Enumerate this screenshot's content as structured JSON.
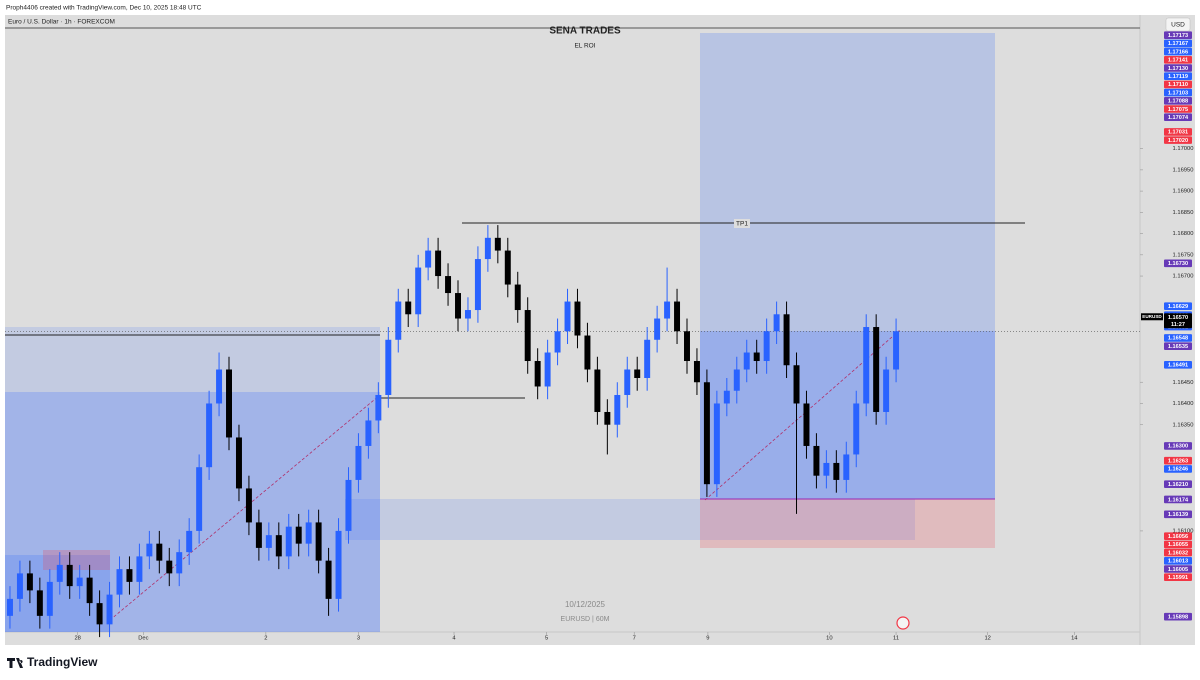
{
  "header": {
    "created": "Proph4406 created with TradingView.com, Dec 10, 2025 18:48 UTC"
  },
  "chart_data": {
    "type": "candlestick",
    "symbol_title": "Euro / U.S. Dollar · 1h · FOREXCOM",
    "title": "SENA TRADES",
    "subtitle": "EL ROI",
    "annotation": "TP1",
    "watermark": [
      "10/12/2025",
      "EURUSD | 60M"
    ],
    "currency": "USD",
    "ylim": [
      1.15862,
      1.17284
    ],
    "xlim": [
      -0.5,
      113.5
    ],
    "xticks": [
      {
        "value": 6.8,
        "label": "28"
      },
      {
        "value": 13.4,
        "label": "Dec"
      },
      {
        "value": 25.7,
        "label": "2"
      },
      {
        "value": 35.0,
        "label": "3"
      },
      {
        "value": 44.6,
        "label": "4"
      },
      {
        "value": 53.9,
        "label": "5"
      },
      {
        "value": 62.7,
        "label": "7"
      },
      {
        "value": 70.1,
        "label": "9"
      },
      {
        "value": 82.3,
        "label": "10"
      },
      {
        "value": 89.0,
        "label": "11"
      },
      {
        "value": 98.2,
        "label": "12"
      },
      {
        "value": 106.9,
        "label": "14"
      }
    ],
    "yticks": [
      {
        "value": 1.17,
        "label": "1.17000"
      },
      {
        "value": 1.1695,
        "label": "1.16950"
      },
      {
        "value": 1.169,
        "label": "1.16900"
      },
      {
        "value": 1.1685,
        "label": "1.16850"
      },
      {
        "value": 1.168,
        "label": "1.16800"
      },
      {
        "value": 1.1675,
        "label": "1.16750"
      },
      {
        "value": 1.167,
        "label": "1.16700"
      },
      {
        "value": 1.1645,
        "label": "1.16450"
      },
      {
        "value": 1.164,
        "label": "1.16400"
      },
      {
        "value": 1.1635,
        "label": "1.16350"
      },
      {
        "value": 1.161,
        "label": "1.16100"
      }
    ],
    "up_color": "#2962ff",
    "down_color": "#000000",
    "open": [
      1.159,
      1.1594,
      1.16,
      1.1596,
      1.159,
      1.1598,
      1.1602,
      1.1597,
      1.1599,
      1.1593,
      1.1588,
      1.1595,
      1.1601,
      1.1598,
      1.1604,
      1.1607,
      1.1603,
      1.16,
      1.1605,
      1.161,
      1.1625,
      1.164,
      1.1648,
      1.1632,
      1.162,
      1.1612,
      1.1606,
      1.1609,
      1.1604,
      1.1611,
      1.1607,
      1.1612,
      1.1603,
      1.1594,
      1.161,
      1.1622,
      1.163,
      1.1636,
      1.1642,
      1.1655,
      1.1664,
      1.1661,
      1.1672,
      1.1676,
      1.167,
      1.1666,
      1.166,
      1.1662,
      1.1674,
      1.1679,
      1.1676,
      1.1668,
      1.1662,
      1.165,
      1.1644,
      1.1652,
      1.1657,
      1.1664,
      1.1656,
      1.1648,
      1.1638,
      1.1635,
      1.1642,
      1.1648,
      1.1646,
      1.1655,
      1.166,
      1.1664,
      1.1657,
      1.165,
      1.1645,
      1.1621,
      1.164,
      1.1643,
      1.1648,
      1.1652,
      1.165,
      1.1657,
      1.1661,
      1.1649,
      1.164,
      1.163,
      1.1623,
      1.1626,
      1.1622,
      1.1628,
      1.164,
      1.1658,
      1.1638,
      1.1648
    ],
    "high": [
      1.1597,
      1.1603,
      1.1603,
      1.1599,
      1.1601,
      1.1605,
      1.1605,
      1.1602,
      1.1602,
      1.1596,
      1.1598,
      1.1604,
      1.1604,
      1.1607,
      1.161,
      1.161,
      1.1606,
      1.1608,
      1.1613,
      1.1628,
      1.1643,
      1.1652,
      1.1651,
      1.1635,
      1.1623,
      1.1615,
      1.1612,
      1.1612,
      1.1614,
      1.1614,
      1.1615,
      1.1615,
      1.1606,
      1.1613,
      1.1625,
      1.1633,
      1.1639,
      1.1645,
      1.1658,
      1.1667,
      1.1667,
      1.1675,
      1.1679,
      1.1679,
      1.1673,
      1.1669,
      1.1665,
      1.1677,
      1.1682,
      1.1682,
      1.1679,
      1.1671,
      1.1665,
      1.1653,
      1.1655,
      1.166,
      1.1667,
      1.1667,
      1.1659,
      1.1651,
      1.1641,
      1.1645,
      1.1651,
      1.1651,
      1.1658,
      1.1663,
      1.1672,
      1.1667,
      1.166,
      1.1653,
      1.1648,
      1.1643,
      1.1646,
      1.1651,
      1.1655,
      1.1655,
      1.166,
      1.1664,
      1.1664,
      1.1652,
      1.1643,
      1.1633,
      1.1629,
      1.1629,
      1.1631,
      1.1643,
      1.1661,
      1.1661,
      1.1651,
      1.166
    ],
    "low": [
      1.1587,
      1.1591,
      1.1593,
      1.1587,
      1.1587,
      1.1595,
      1.1594,
      1.1594,
      1.159,
      1.1585,
      1.1585,
      1.1592,
      1.1595,
      1.1595,
      1.1601,
      1.16,
      1.1597,
      1.1597,
      1.1602,
      1.1607,
      1.1622,
      1.1637,
      1.1629,
      1.1617,
      1.1609,
      1.1603,
      1.1603,
      1.1601,
      1.1601,
      1.1604,
      1.1604,
      1.16,
      1.159,
      1.1591,
      1.1607,
      1.1619,
      1.1627,
      1.1633,
      1.1639,
      1.1652,
      1.1658,
      1.1658,
      1.1669,
      1.1667,
      1.1663,
      1.1657,
      1.1657,
      1.1659,
      1.1671,
      1.1673,
      1.1665,
      1.1659,
      1.1647,
      1.1641,
      1.1641,
      1.1649,
      1.1654,
      1.1653,
      1.1645,
      1.1635,
      1.1628,
      1.1632,
      1.1639,
      1.1643,
      1.1643,
      1.1652,
      1.1657,
      1.1654,
      1.1647,
      1.1642,
      1.1618,
      1.1618,
      1.1637,
      1.164,
      1.1645,
      1.1647,
      1.1647,
      1.1654,
      1.1646,
      1.1614,
      1.1627,
      1.162,
      1.162,
      1.1619,
      1.1619,
      1.1625,
      1.1637,
      1.1635,
      1.1635,
      1.1645
    ],
    "close": [
      1.1594,
      1.16,
      1.1596,
      1.159,
      1.1598,
      1.1602,
      1.1597,
      1.1599,
      1.1593,
      1.1588,
      1.1595,
      1.1601,
      1.1598,
      1.1604,
      1.1607,
      1.1603,
      1.16,
      1.1605,
      1.161,
      1.1625,
      1.164,
      1.1648,
      1.1632,
      1.162,
      1.1612,
      1.1606,
      1.1609,
      1.1604,
      1.1611,
      1.1607,
      1.1612,
      1.1603,
      1.1594,
      1.161,
      1.1622,
      1.163,
      1.1636,
      1.1642,
      1.1655,
      1.1664,
      1.1661,
      1.1672,
      1.1676,
      1.167,
      1.1666,
      1.166,
      1.1662,
      1.1674,
      1.1679,
      1.1676,
      1.1668,
      1.1662,
      1.165,
      1.1644,
      1.1652,
      1.1657,
      1.1664,
      1.1656,
      1.1648,
      1.1638,
      1.1635,
      1.1642,
      1.1648,
      1.1646,
      1.1655,
      1.166,
      1.1664,
      1.1657,
      1.165,
      1.1645,
      1.1621,
      1.164,
      1.1643,
      1.1648,
      1.1652,
      1.165,
      1.1657,
      1.1661,
      1.1649,
      1.164,
      1.163,
      1.1623,
      1.1626,
      1.1622,
      1.1628,
      1.164,
      1.1658,
      1.1638,
      1.1648,
      1.1657
    ],
    "price_labels": [
      {
        "value": 1.17173,
        "label": "1.17173",
        "color": "#673ab7"
      },
      {
        "value": 1.17167,
        "label": "1.17167",
        "color": "#2962ff"
      },
      {
        "value": 1.17166,
        "label": "1.17166",
        "color": "#2962ff"
      },
      {
        "value": 1.17141,
        "label": "1.17141",
        "color": "#f23645"
      },
      {
        "value": 1.1713,
        "label": "1.17130",
        "color": "#673ab7"
      },
      {
        "value": 1.17119,
        "label": "1.17119",
        "color": "#2962ff"
      },
      {
        "value": 1.1711,
        "label": "1.17110",
        "color": "#f23645"
      },
      {
        "value": 1.17103,
        "label": "1.17103",
        "color": "#2962ff"
      },
      {
        "value": 1.17088,
        "label": "1.17088",
        "color": "#673ab7"
      },
      {
        "value": 1.17075,
        "label": "1.17075",
        "color": "#f23645"
      },
      {
        "value": 1.17074,
        "label": "1.17074",
        "color": "#673ab7"
      },
      {
        "value": 1.17031,
        "label": "1.17031",
        "color": "#f23645"
      },
      {
        "value": 1.1702,
        "label": "1.17020",
        "color": "#f23645"
      },
      {
        "value": 1.1673,
        "label": "1.16730",
        "color": "#673ab7"
      },
      {
        "value": 1.16629,
        "label": "1.16629",
        "color": "#2962ff"
      },
      {
        "value": 1.16608,
        "label": "1.16608",
        "color": "#2962ff"
      },
      {
        "value": 1.16581,
        "label": "1.16581",
        "color": "#2962ff"
      },
      {
        "value": 1.16548,
        "label": "1.16548",
        "color": "#2962ff"
      },
      {
        "value": 1.16535,
        "label": "1.16535",
        "color": "#673ab7"
      },
      {
        "value": 1.16491,
        "label": "1.16491",
        "color": "#2962ff"
      },
      {
        "value": 1.163,
        "label": "1.16300",
        "color": "#673ab7"
      },
      {
        "value": 1.16263,
        "label": "1.16263",
        "color": "#f23645"
      },
      {
        "value": 1.16246,
        "label": "1.16246",
        "color": "#2962ff"
      },
      {
        "value": 1.1621,
        "label": "1.16210",
        "color": "#673ab7"
      },
      {
        "value": 1.16174,
        "label": "1.16174",
        "color": "#673ab7"
      },
      {
        "value": 1.16139,
        "label": "1.16139",
        "color": "#673ab7"
      },
      {
        "value": 1.16056,
        "label": "1.16056",
        "color": "#f23645"
      },
      {
        "value": 1.16055,
        "label": "1.16055",
        "color": "#f23645"
      },
      {
        "value": 1.16032,
        "label": "1.16032",
        "color": "#f23645"
      },
      {
        "value": 1.16013,
        "label": "1.16013",
        "color": "#2962ff"
      },
      {
        "value": 1.16005,
        "label": "1.16005",
        "color": "#673ab7"
      },
      {
        "value": 1.15991,
        "label": "1.15991",
        "color": "#f23645"
      },
      {
        "value": 1.15898,
        "label": "1.15898",
        "color": "#673ab7"
      }
    ],
    "last_price": {
      "symbol": "EURUSD",
      "value": 1.1657,
      "label": "1.16570",
      "countdown": "11:27"
    }
  },
  "footer": {
    "brand": "TradingView"
  }
}
